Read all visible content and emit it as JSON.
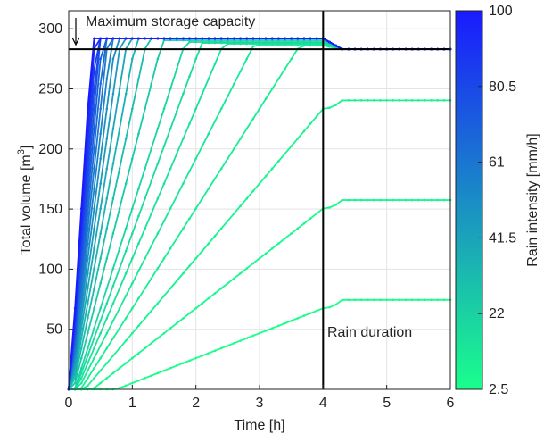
{
  "chart_data": {
    "type": "line",
    "xlabel": "Time [h]",
    "ylabel_main": "Total volume [m",
    "ylabel_sup": "3",
    "ylabel_end": "]",
    "xlim": [
      0,
      6
    ],
    "ylim": [
      0,
      315
    ],
    "x_ticks": [
      0,
      1,
      2,
      3,
      4,
      5,
      6
    ],
    "y_ticks": [
      50,
      100,
      150,
      200,
      250,
      300
    ],
    "grid": true,
    "max_capacity": 283,
    "overflow_level": 292,
    "rain_duration": 4,
    "annotations": {
      "capacity": "Maximum storage capacity",
      "rain": "Rain duration"
    },
    "colorbar": {
      "label": "Rain intensity [mm/h]",
      "ticks": [
        100,
        80.5,
        61,
        41.5,
        22,
        2.5
      ],
      "min": 2.5,
      "max": 100,
      "color_low": "#1aff8c",
      "color_high": "#1a1aff"
    },
    "intensities": [
      2.5,
      5,
      7.5,
      10,
      12.5,
      15,
      17.5,
      20,
      25,
      30,
      35,
      40,
      45,
      50,
      55,
      60,
      65,
      70,
      75,
      80,
      85,
      90,
      95,
      100
    ],
    "series_rule": {
      "onset_delay_hours_at_min_intensity": 0.75,
      "volume_rate_m3_per_hour_per_mm_h": 8.3,
      "drain_after_rain_hours": 0.3,
      "sample_step_hours": 0.1
    }
  }
}
